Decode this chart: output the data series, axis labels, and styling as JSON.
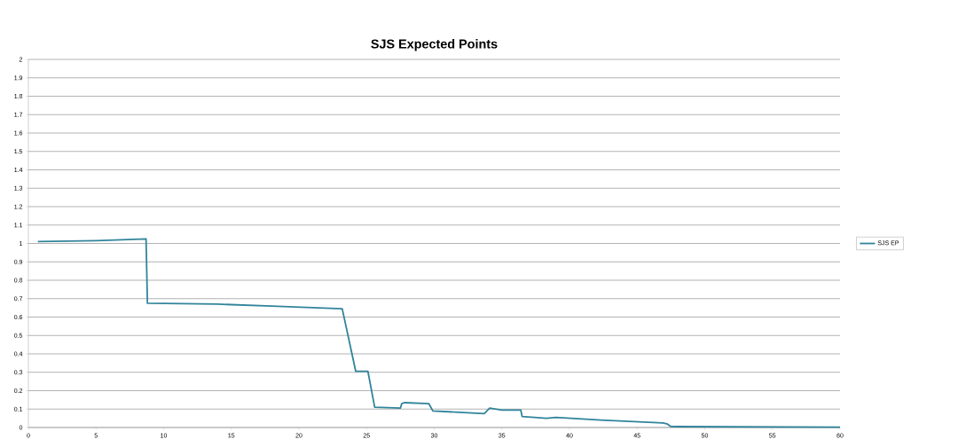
{
  "chart_data": {
    "type": "line",
    "title": "SJS Expected Points",
    "xlim": [
      0,
      60
    ],
    "xticks": [
      0,
      5,
      10,
      15,
      20,
      25,
      30,
      35,
      40,
      45,
      50,
      55,
      60
    ],
    "ylim": [
      0,
      2
    ],
    "yticks": [
      0,
      0.1,
      0.2,
      0.3,
      0.4,
      0.5,
      0.6,
      0.7,
      0.8,
      0.9,
      1,
      1.1,
      1.2,
      1.3,
      1.4,
      1.5,
      1.6,
      1.7,
      1.8,
      1.9,
      2
    ],
    "grid": "y",
    "legend": "right",
    "marker": "none",
    "line_style": "solid",
    "series": [
      {
        "name": "SJS EP",
        "color": "#31849b",
        "x": [
          0.7,
          5,
          8.7,
          8.8,
          14,
          18,
          23.2,
          24.2,
          25.1,
          25.6,
          27.5,
          27.6,
          27.8,
          29.6,
          29.9,
          33.7,
          34.1,
          35.0,
          36.4,
          36.5,
          38.3,
          39.0,
          42.3,
          46.9,
          47.2,
          47.5,
          60
        ],
        "values": [
          1.01,
          1.015,
          1.025,
          0.675,
          0.67,
          0.66,
          0.645,
          0.305,
          0.305,
          0.11,
          0.105,
          0.13,
          0.135,
          0.13,
          0.09,
          0.075,
          0.105,
          0.095,
          0.095,
          0.06,
          0.05,
          0.055,
          0.04,
          0.025,
          0.02,
          0.005,
          0.002
        ]
      }
    ]
  }
}
